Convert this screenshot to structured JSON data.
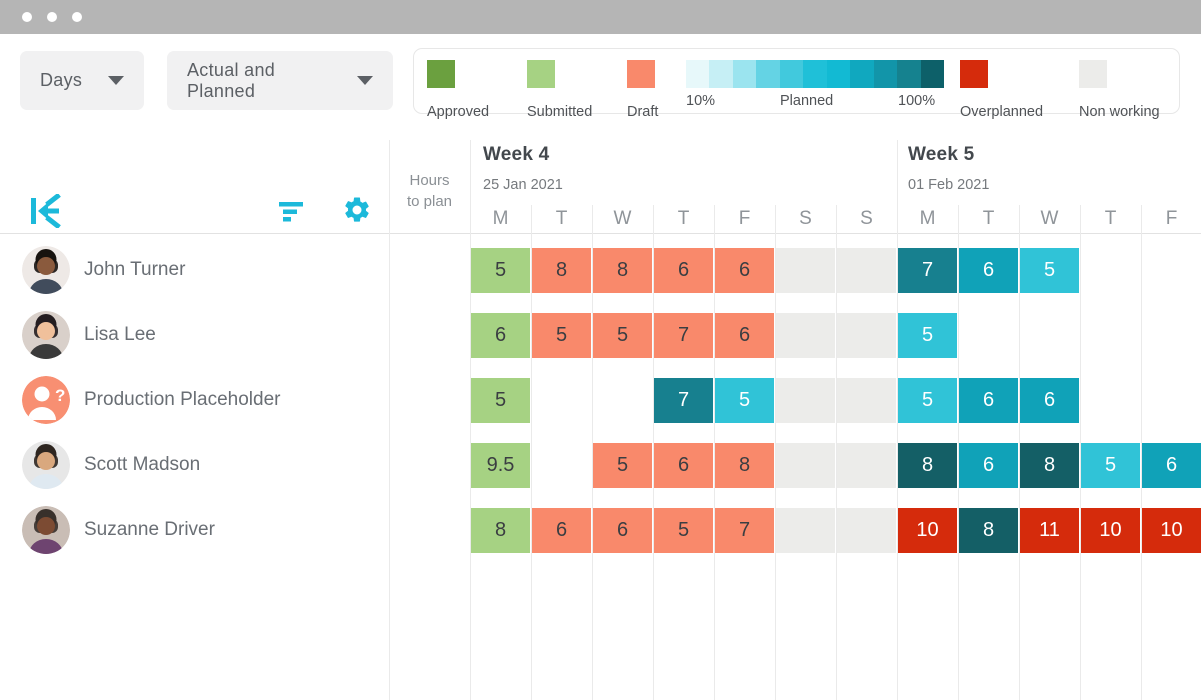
{
  "window": {
    "control_dots": 3,
    "bar_color": "#b5b5b5"
  },
  "toolbar": {
    "timescale_dropdown": {
      "value": "Days"
    },
    "view_dropdown": {
      "value": "Actual and Planned"
    }
  },
  "legend": {
    "approved": {
      "label": "Approved",
      "color": "#6ba03f"
    },
    "submitted": {
      "label": "Submitted",
      "color": "#a6d283"
    },
    "draft": {
      "label": "Draft",
      "color": "#f9896b"
    },
    "planned": {
      "label": "Planned",
      "min_label": "10%",
      "max_label": "100%",
      "gradient": [
        "#e7f8fa",
        "#c6eff5",
        "#9be4ef",
        "#64d3e4",
        "#41c9dd",
        "#1fc0d8",
        "#12bad3",
        "#10a8bf",
        "#1295a9",
        "#15828f",
        "#0d6069"
      ]
    },
    "overplanned": {
      "label": "Overplanned",
      "color": "#d52b0c"
    },
    "non_working": {
      "label": "Non working",
      "color": "#ececea"
    }
  },
  "sidebar": {
    "logo": "kelloo-arrow-k",
    "hours_header_line1": "Hours",
    "hours_header_line2": "to plan",
    "accent_color": "#1cb9da"
  },
  "timeline": {
    "weeks": [
      {
        "title": "Week 4",
        "date": "25 Jan 2021",
        "days": [
          "M",
          "T",
          "W",
          "T",
          "F",
          "S",
          "S"
        ]
      },
      {
        "title": "Week 5",
        "date": "01 Feb 2021",
        "days": [
          "M",
          "T",
          "W",
          "T",
          "F"
        ]
      }
    ]
  },
  "cell_colors": {
    "submitted": "#a6d283",
    "draft": "#f9896b",
    "planned_60": "#30c3d7",
    "planned_75": "#10a2b8",
    "planned_90": "#17808f",
    "planned_100": "#145f66",
    "overplanned": "#d52b0c",
    "non_working": "#ececea"
  },
  "resources": [
    {
      "name": "John Turner",
      "avatar": {
        "style": "photo",
        "bg": "#eee9e6",
        "skin": "#8a5a3d",
        "hair": "#17130f",
        "shirt": "#414c5c"
      },
      "cells": [
        {
          "day": 0,
          "value": "5",
          "status": "submitted"
        },
        {
          "day": 1,
          "value": "8",
          "status": "draft"
        },
        {
          "day": 2,
          "value": "8",
          "status": "draft"
        },
        {
          "day": 3,
          "value": "6",
          "status": "draft"
        },
        {
          "day": 4,
          "value": "6",
          "status": "draft"
        },
        {
          "day": 5,
          "value": "",
          "status": "non_working"
        },
        {
          "day": 6,
          "value": "",
          "status": "non_working"
        },
        {
          "day": 7,
          "value": "7",
          "status": "planned_90"
        },
        {
          "day": 8,
          "value": "6",
          "status": "planned_75"
        },
        {
          "day": 9,
          "value": "5",
          "status": "planned_60"
        }
      ]
    },
    {
      "name": "Lisa Lee",
      "avatar": {
        "style": "photo",
        "bg": "#d9d0ca",
        "skin": "#f0c09b",
        "hair": "#241d20",
        "shirt": "#3a3a3a"
      },
      "cells": [
        {
          "day": 0,
          "value": "6",
          "status": "submitted"
        },
        {
          "day": 1,
          "value": "5",
          "status": "draft"
        },
        {
          "day": 2,
          "value": "5",
          "status": "draft"
        },
        {
          "day": 3,
          "value": "7",
          "status": "draft"
        },
        {
          "day": 4,
          "value": "6",
          "status": "draft"
        },
        {
          "day": 5,
          "value": "",
          "status": "non_working"
        },
        {
          "day": 6,
          "value": "",
          "status": "non_working"
        },
        {
          "day": 7,
          "value": "5",
          "status": "planned_60"
        }
      ]
    },
    {
      "name": "Production Placeholder",
      "avatar": {
        "style": "placeholder",
        "bg": "#f88f72"
      },
      "cells": [
        {
          "day": 0,
          "value": "5",
          "status": "submitted"
        },
        {
          "day": 3,
          "value": "7",
          "status": "planned_90"
        },
        {
          "day": 4,
          "value": "5",
          "status": "planned_60"
        },
        {
          "day": 5,
          "value": "",
          "status": "non_working"
        },
        {
          "day": 6,
          "value": "",
          "status": "non_working"
        },
        {
          "day": 7,
          "value": "5",
          "status": "planned_60"
        },
        {
          "day": 8,
          "value": "6",
          "status": "planned_75"
        },
        {
          "day": 9,
          "value": "6",
          "status": "planned_75"
        }
      ]
    },
    {
      "name": "Scott Madson",
      "avatar": {
        "style": "photo",
        "bg": "#e7e7e7",
        "skin": "#d9a87e",
        "hair": "#2e2620",
        "shirt": "#dfe9f1"
      },
      "cells": [
        {
          "day": 0,
          "value": "9.5",
          "status": "submitted"
        },
        {
          "day": 2,
          "value": "5",
          "status": "draft"
        },
        {
          "day": 3,
          "value": "6",
          "status": "draft"
        },
        {
          "day": 4,
          "value": "8",
          "status": "draft"
        },
        {
          "day": 5,
          "value": "",
          "status": "non_working"
        },
        {
          "day": 6,
          "value": "",
          "status": "non_working"
        },
        {
          "day": 7,
          "value": "8",
          "status": "planned_100"
        },
        {
          "day": 8,
          "value": "6",
          "status": "planned_75"
        },
        {
          "day": 9,
          "value": "8",
          "status": "planned_100"
        },
        {
          "day": 10,
          "value": "5",
          "status": "planned_60"
        },
        {
          "day": 11,
          "value": "6",
          "status": "planned_75"
        }
      ]
    },
    {
      "name": "Suzanne Driver",
      "avatar": {
        "style": "photo",
        "bg": "#c9bdb5",
        "skin": "#7c4b33",
        "hair": "#38302b",
        "shirt": "#6e4470"
      },
      "cells": [
        {
          "day": 0,
          "value": "8",
          "status": "submitted"
        },
        {
          "day": 1,
          "value": "6",
          "status": "draft"
        },
        {
          "day": 2,
          "value": "6",
          "status": "draft"
        },
        {
          "day": 3,
          "value": "5",
          "status": "draft"
        },
        {
          "day": 4,
          "value": "7",
          "status": "draft"
        },
        {
          "day": 5,
          "value": "",
          "status": "non_working"
        },
        {
          "day": 6,
          "value": "",
          "status": "non_working"
        },
        {
          "day": 7,
          "value": "10",
          "status": "overplanned"
        },
        {
          "day": 8,
          "value": "8",
          "status": "planned_100"
        },
        {
          "day": 9,
          "value": "11",
          "status": "overplanned"
        },
        {
          "day": 10,
          "value": "10",
          "status": "overplanned"
        },
        {
          "day": 11,
          "value": "10",
          "status": "overplanned"
        }
      ]
    }
  ]
}
